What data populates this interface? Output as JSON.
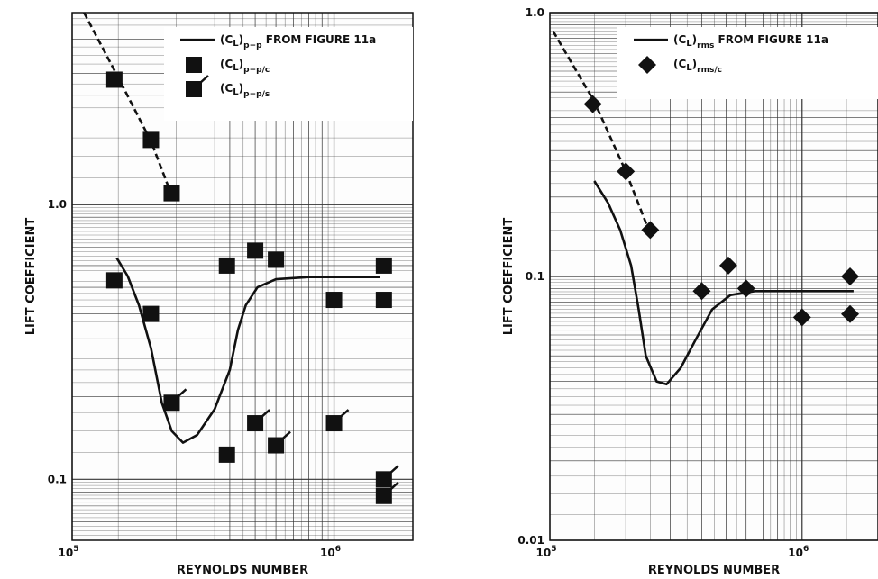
{
  "chart_data": [
    {
      "type": "scatter",
      "xlabel": "REYNOLDS NUMBER",
      "ylabel": "LIFT COEFFICIENT",
      "x_scale": "log",
      "y_scale": "log",
      "xlim": [
        100000,
        2000000
      ],
      "ylim": [
        0.06,
        5
      ],
      "x_tick_labels": [
        {
          "value": 100000,
          "base": "10",
          "exp": "5"
        },
        {
          "value": 1000000,
          "base": "10",
          "exp": "6"
        }
      ],
      "y_tick_labels": [
        {
          "value": 1.0,
          "label": "1.0"
        },
        {
          "value": 0.1,
          "label": "0.1"
        }
      ],
      "grid": true,
      "legend_position": "top-right",
      "legend": [
        {
          "kind": "line",
          "base": "(C",
          "sub": "L",
          "close": ")",
          "sub2": "p−p",
          "tail": " FROM FIGURE 11a"
        },
        {
          "kind": "square",
          "base": "(C",
          "sub": "L",
          "close": ")",
          "sub2": "p−p/c",
          "tail": ""
        },
        {
          "kind": "flagged-square",
          "base": "(C",
          "sub": "L",
          "close": ")",
          "sub2": "p−p/s",
          "tail": ""
        }
      ],
      "series": [
        {
          "name": "(CL)p-p FROM FIGURE 11a",
          "kind": "line",
          "points": [
            [
              148000,
              0.64
            ],
            [
              163000,
              0.55
            ],
            [
              180000,
              0.43
            ],
            [
              200000,
              0.3
            ],
            [
              220000,
              0.19
            ],
            [
              240000,
              0.15
            ],
            [
              265000,
              0.136
            ],
            [
              300000,
              0.145
            ],
            [
              350000,
              0.18
            ],
            [
              400000,
              0.25
            ],
            [
              430000,
              0.35
            ],
            [
              460000,
              0.43
            ],
            [
              510000,
              0.5
            ],
            [
              600000,
              0.535
            ],
            [
              800000,
              0.545
            ],
            [
              1000000,
              0.545
            ],
            [
              1500000,
              0.545
            ]
          ]
        },
        {
          "name": "(CL)p-p dashed extrapolation",
          "kind": "dashed-line",
          "points": [
            [
              111000,
              5
            ],
            [
              150000,
              2.9
            ],
            [
              200000,
              1.7
            ],
            [
              240000,
              1.08
            ]
          ]
        },
        {
          "name": "(CL)p-p/c",
          "kind": "square",
          "points": [
            [
              145000,
              2.85
            ],
            [
              200000,
              1.72
            ],
            [
              240000,
              1.1
            ],
            [
              145000,
              0.53
            ],
            [
              200000,
              0.4
            ],
            [
              390000,
              0.6
            ],
            [
              500000,
              0.68
            ],
            [
              600000,
              0.63
            ],
            [
              1000000,
              0.45
            ],
            [
              1550000,
              0.6
            ],
            [
              1550000,
              0.45
            ]
          ]
        },
        {
          "name": "(CL)p-p/s",
          "kind": "flagged-square",
          "points": [
            [
              240000,
              0.19
            ],
            [
              500000,
              0.16
            ],
            [
              600000,
              0.133
            ],
            [
              1000000,
              0.16
            ],
            [
              1550000,
              0.1
            ],
            [
              1550000,
              0.087
            ]
          ]
        },
        {
          "name": "(CL)p-p/c low",
          "kind": "square",
          "points": [
            [
              390000,
              0.123
            ]
          ]
        }
      ]
    },
    {
      "type": "scatter",
      "xlabel": "REYNOLDS NUMBER",
      "ylabel": "LIFT COEFFICIENT",
      "x_scale": "log",
      "y_scale": "log",
      "xlim": [
        100000,
        2000000
      ],
      "ylim": [
        0.01,
        1.0
      ],
      "x_tick_labels": [
        {
          "value": 100000,
          "base": "10",
          "exp": "5"
        },
        {
          "value": 1000000,
          "base": "10",
          "exp": "6"
        }
      ],
      "y_tick_labels": [
        {
          "value": 1.0,
          "label": "1.0"
        },
        {
          "value": 0.1,
          "label": "0.1"
        },
        {
          "value": 0.01,
          "label": "0.01"
        }
      ],
      "grid": true,
      "legend_position": "top-right",
      "legend": [
        {
          "kind": "line",
          "base": "(C",
          "sub": "L",
          "close": ")",
          "sub2": "rms",
          "tail": " FROM FIGURE 11a"
        },
        {
          "kind": "diamond",
          "base": "(C",
          "sub": "L",
          "close": ")",
          "sub2": "rms/c",
          "tail": ""
        }
      ],
      "series": [
        {
          "name": "(CL)rms FROM FIGURE 11a",
          "kind": "line",
          "points": [
            [
              150000,
              0.23
            ],
            [
              170000,
              0.19
            ],
            [
              190000,
              0.15
            ],
            [
              210000,
              0.11
            ],
            [
              225000,
              0.075
            ],
            [
              240000,
              0.05
            ],
            [
              265000,
              0.04
            ],
            [
              290000,
              0.039
            ],
            [
              330000,
              0.045
            ],
            [
              380000,
              0.058
            ],
            [
              440000,
              0.075
            ],
            [
              520000,
              0.085
            ],
            [
              650000,
              0.088
            ],
            [
              1000000,
              0.088
            ],
            [
              1600000,
              0.088
            ]
          ]
        },
        {
          "name": "(CL)rms dashed extrapolation",
          "kind": "dashed-line",
          "points": [
            [
              103000,
              0.85
            ],
            [
              150000,
              0.46
            ],
            [
              200000,
              0.25
            ],
            [
              250000,
              0.145
            ]
          ]
        },
        {
          "name": "(CL)rms/c",
          "kind": "diamond",
          "points": [
            [
              148000,
              0.45
            ],
            [
              200000,
              0.25
            ],
            [
              250000,
              0.15
            ],
            [
              400000,
              0.088
            ],
            [
              510000,
              0.11
            ],
            [
              600000,
              0.09
            ],
            [
              1000000,
              0.07
            ],
            [
              1550000,
              0.1
            ],
            [
              1550000,
              0.072
            ]
          ]
        }
      ]
    }
  ]
}
